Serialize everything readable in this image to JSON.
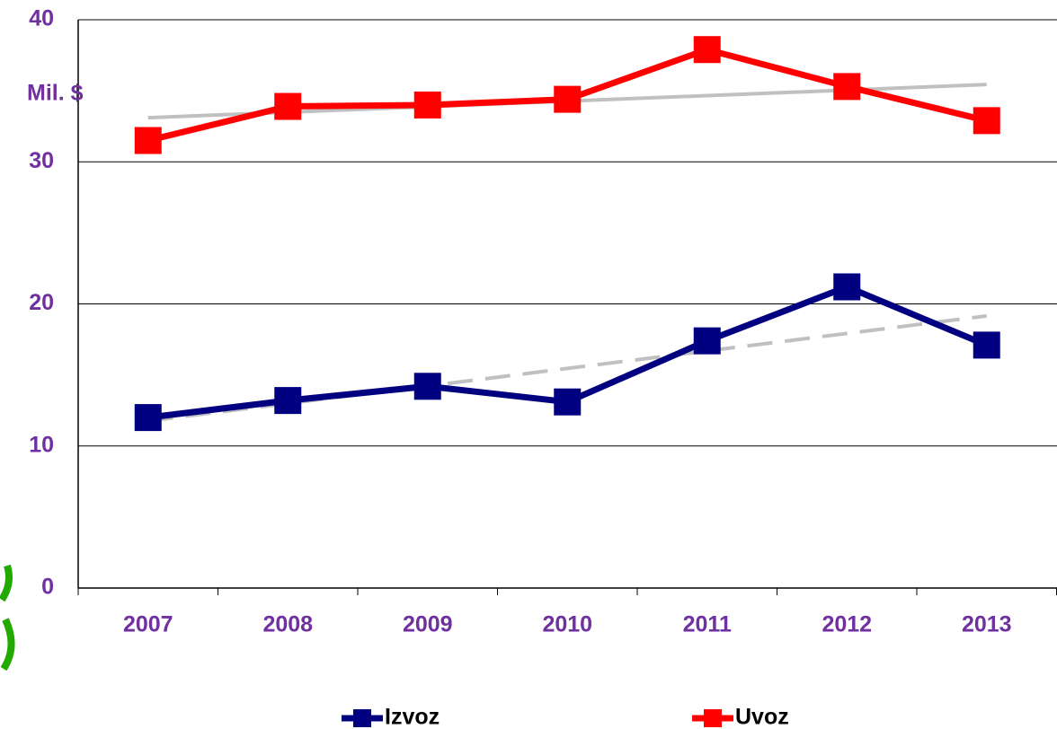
{
  "chart_data": {
    "type": "line",
    "y_label": "Mil. $",
    "categories": [
      "2007",
      "2008",
      "2009",
      "2010",
      "2011",
      "2012",
      "2013"
    ],
    "series": [
      {
        "name": "Izvoz",
        "color": "#000080",
        "values": [
          12.0,
          13.2,
          14.2,
          13.1,
          17.4,
          21.2,
          17.1
        ],
        "trendline": {
          "color": "#c0c0c0",
          "dashed": true
        }
      },
      {
        "name": "Uvoz",
        "color": "#ff0000",
        "values": [
          31.5,
          33.9,
          34.0,
          34.4,
          37.9,
          35.3,
          32.9
        ],
        "trendline": {
          "color": "#c0c0c0",
          "dashed": false
        }
      }
    ],
    "ylim": [
      0,
      40
    ],
    "yticks": [
      0,
      10,
      20,
      30,
      40
    ],
    "grid": true,
    "legend": "bottom"
  }
}
